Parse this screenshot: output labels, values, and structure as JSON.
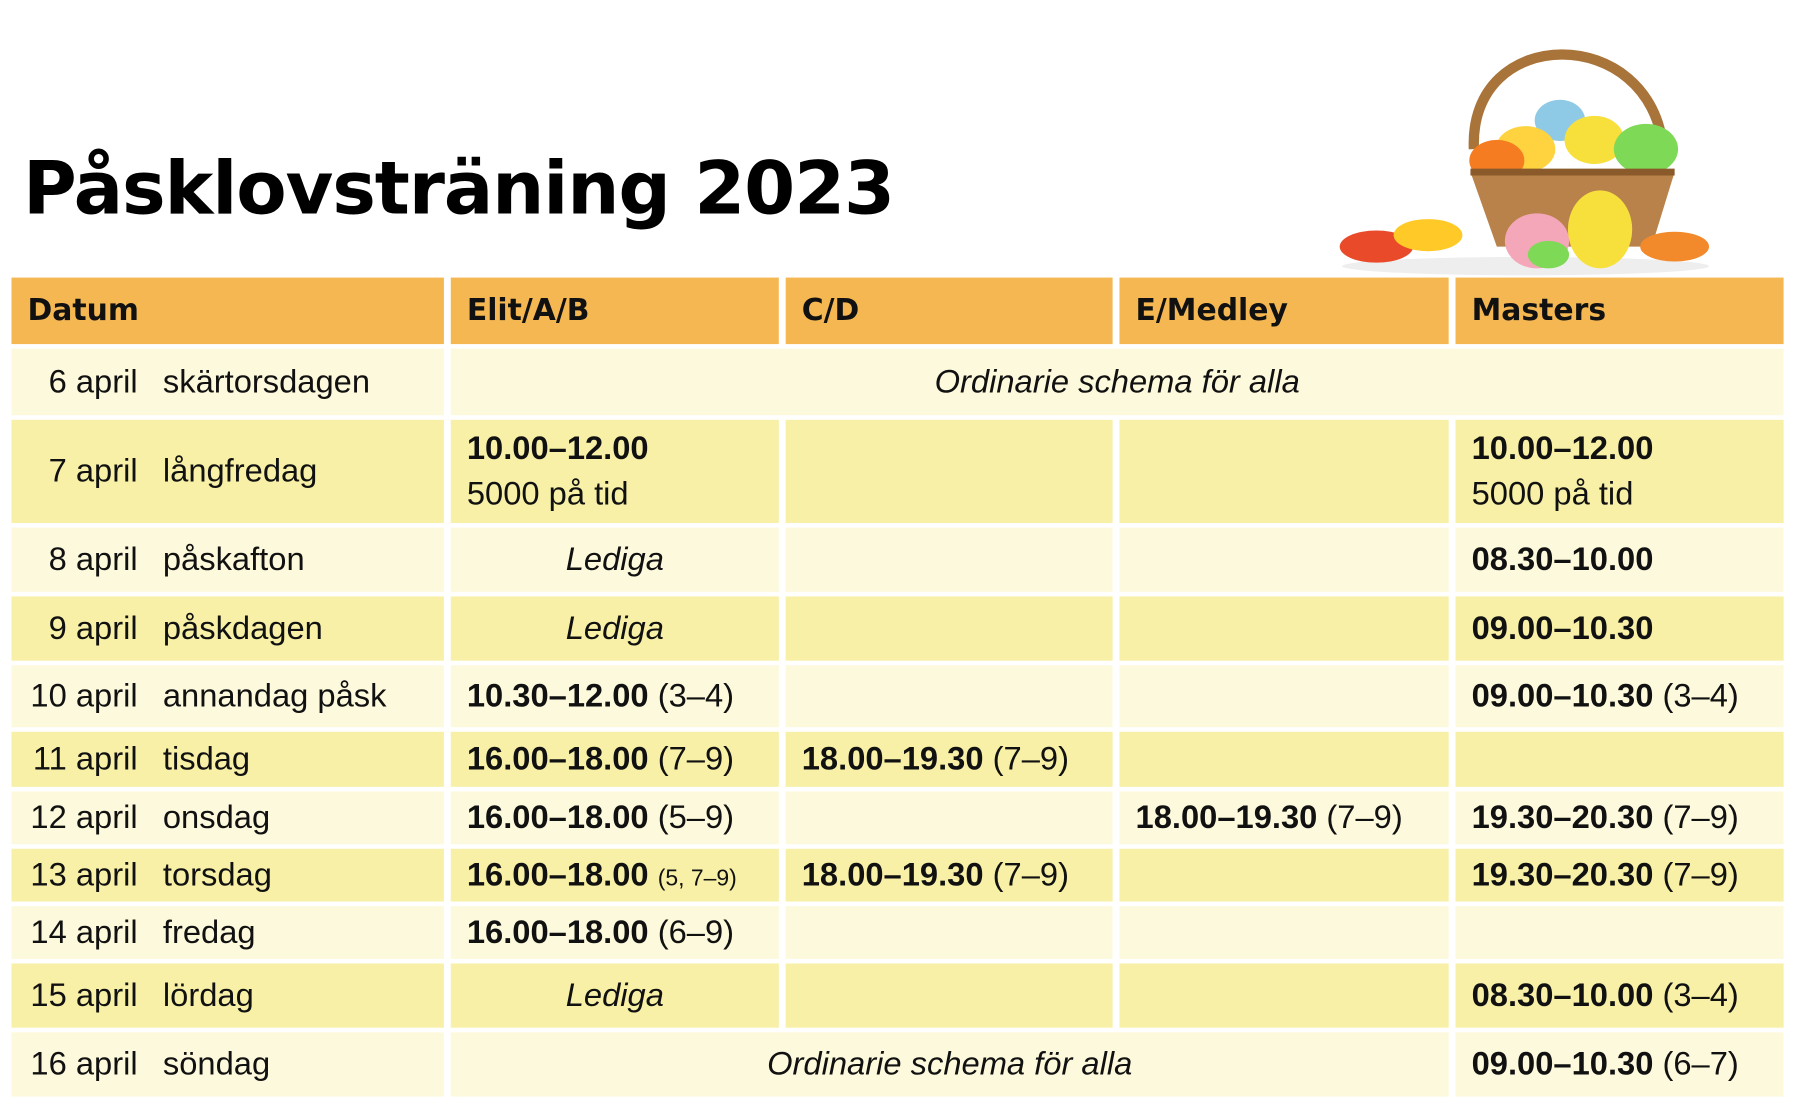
{
  "header": {
    "title": "Påsklovsträning 2023"
  },
  "table": {
    "columns": [
      "Datum",
      "Elit/A/B",
      "C/D",
      "E/Medley",
      "Masters"
    ],
    "rows": [
      {
        "date": "6 april",
        "day": "skärtorsdagen",
        "all": "Ordinarie schema för alla"
      },
      {
        "date": "7 april",
        "day": "långfredag",
        "elit": {
          "time": "10.00–12.00",
          "note": "5000 på tid"
        },
        "masters": {
          "time": "10.00–12.00",
          "note": "5000 på tid"
        }
      },
      {
        "date": "8 april",
        "day": "påskafton",
        "elit": "Lediga",
        "masters": {
          "time": "08.30–10.00"
        }
      },
      {
        "date": "9 april",
        "day": "påskdagen",
        "elit": "Lediga",
        "masters": {
          "time": "09.00–10.30"
        }
      },
      {
        "date": "10 april",
        "day": "annandag påsk",
        "elit": {
          "time": "10.30–12.00",
          "note": "(3–4)"
        },
        "masters": {
          "time": "09.00–10.30",
          "note": "(3–4)"
        }
      },
      {
        "date": "11 april",
        "day": "tisdag",
        "elit": {
          "time": "16.00–18.00",
          "note": "(7–9)"
        },
        "cd": {
          "time": "18.00–19.30",
          "note": "(7–9)"
        }
      },
      {
        "date": "12 april",
        "day": "onsdag",
        "elit": {
          "time": "16.00–18.00",
          "note": "(5–9)"
        },
        "emedley": {
          "time": "18.00–19.30",
          "note": "(7–9)"
        },
        "masters": {
          "time": "19.30–20.30",
          "note": "(7–9)"
        }
      },
      {
        "date": "13 april",
        "day": "torsdag",
        "elit": {
          "time": "16.00–18.00",
          "note": "(5, 7–9)"
        },
        "cd": {
          "time": "18.00–19.30",
          "note": "(7–9)"
        },
        "masters": {
          "time": "19.30–20.30",
          "note": "(7–9)"
        }
      },
      {
        "date": "14 april",
        "day": "fredag",
        "elit": {
          "time": "16.00–18.00",
          "note": "(6–9)"
        }
      },
      {
        "date": "15 april",
        "day": "lördag",
        "elit": "Lediga",
        "masters": {
          "time": "08.30–10.00",
          "note": "(3–4)"
        }
      },
      {
        "date": "16 april",
        "day": "söndag",
        "all": "Ordinarie schema för alla",
        "masters": {
          "time": "09.00–10.30",
          "note": "(6–7)"
        }
      }
    ]
  }
}
